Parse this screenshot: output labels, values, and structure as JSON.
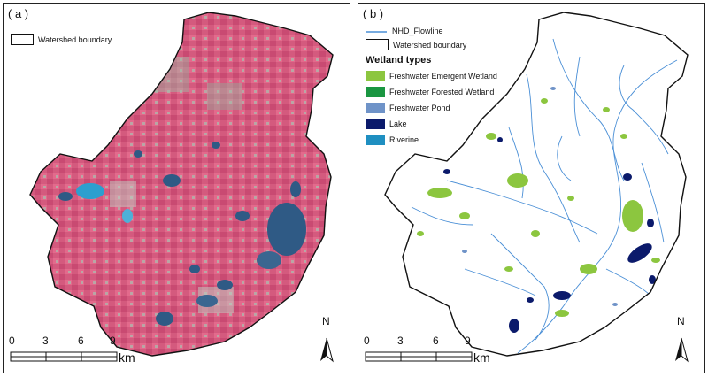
{
  "panels": {
    "a": {
      "label": "( a )",
      "legend": {
        "boundary": "Watershed boundary"
      }
    },
    "b": {
      "label": "( b )",
      "legend": {
        "flowline": "NHD_Flowline",
        "boundary": "Watershed boundary",
        "title": "Wetland types",
        "types": [
          {
            "name": "Freshwater Emergent Wetland",
            "color": "#8cc63f"
          },
          {
            "name": "Freshwater Forested Wetland",
            "color": "#1a9641"
          },
          {
            "name": "Freshwater Pond",
            "color": "#6f93c8"
          },
          {
            "name": "Lake",
            "color": "#0b1a6b"
          },
          {
            "name": "Riverine",
            "color": "#1f8fc1"
          }
        ]
      }
    }
  },
  "scale": {
    "ticks": [
      "0",
      "3",
      "6",
      "9"
    ],
    "unit": "km"
  },
  "north": {
    "label": "N"
  },
  "colors": {
    "imagery_base": "#d85a7f",
    "flowline": "#4a8fd6",
    "boundary": "#111111"
  }
}
